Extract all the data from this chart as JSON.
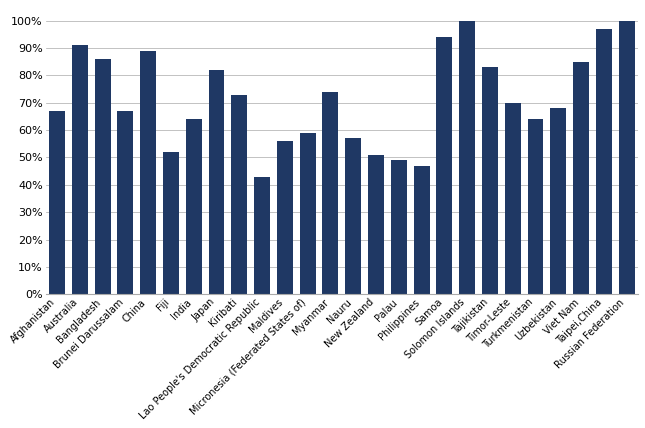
{
  "categories": [
    "Afghanistan",
    "Australia",
    "Bangladesh",
    "Brunei Darussalam",
    "China",
    "Fiji",
    "India",
    "Japan",
    "Kiribati",
    "Lao People's Democratic Republic",
    "Maldives",
    "Micronesia (Federated States of)",
    "Myanmar",
    "Nauru",
    "New Zealand",
    "Palau",
    "Philippines",
    "Samoa",
    "Solomon Islands",
    "Tajikistan",
    "Timor-Leste",
    "Turkmenistan",
    "Uzbekistan",
    "Viet Nam",
    "Taipei,China",
    "Russian Federation"
  ],
  "values": [
    0.67,
    0.91,
    0.86,
    0.67,
    0.89,
    0.52,
    0.64,
    0.82,
    0.73,
    0.43,
    0.56,
    0.59,
    0.74,
    0.57,
    0.51,
    0.49,
    0.47,
    0.94,
    1.0,
    0.83,
    0.7,
    0.64,
    0.68,
    0.85,
    0.97,
    1.0
  ],
  "bar_color": "#1F3864",
  "ylim_max": 1.05,
  "ytick_labels": [
    "0%",
    "10%",
    "20%",
    "30%",
    "40%",
    "50%",
    "60%",
    "70%",
    "80%",
    "90%",
    "100%"
  ]
}
